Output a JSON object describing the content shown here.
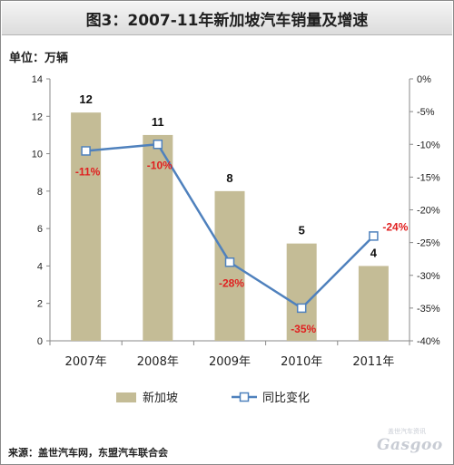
{
  "title": "图3：2007-11年新加坡汽车销量及增速",
  "unit_label": "单位：万辆",
  "source": "来源：盖世汽车网，东盟汽车联合会",
  "logo": {
    "text": "Gasgoo",
    "cn": "盖世汽车资讯"
  },
  "colors": {
    "bar": "#c4bc96",
    "line": "#4f81bd",
    "point_label": "#e02020"
  },
  "chart_data": {
    "type": "bar+line",
    "categories": [
      "2007年",
      "2008年",
      "2009年",
      "2010年",
      "2011年"
    ],
    "series": [
      {
        "name": "新加坡",
        "type": "bar",
        "axis": "left",
        "values": [
          12.2,
          11.0,
          8.0,
          5.2,
          4.0
        ],
        "labels": [
          "12",
          "11",
          "8",
          "5",
          "4"
        ]
      },
      {
        "name": "同比变化",
        "type": "line",
        "axis": "right",
        "values": [
          -11,
          -10,
          -28,
          -35,
          -24
        ],
        "labels": [
          "-11%",
          "-10%",
          "-28%",
          "-35%",
          "-24%"
        ]
      }
    ],
    "y_left": {
      "min": 0,
      "max": 14,
      "step": 2,
      "ticks": [
        "0",
        "2",
        "4",
        "6",
        "8",
        "10",
        "12",
        "14"
      ]
    },
    "y_right": {
      "min": -40,
      "max": 0,
      "step": 5,
      "ticks": [
        "-40%",
        "-35%",
        "-30%",
        "-25%",
        "-20%",
        "-15%",
        "-10%",
        "-5%",
        "0%"
      ]
    },
    "grid": false,
    "legend_position": "bottom"
  }
}
